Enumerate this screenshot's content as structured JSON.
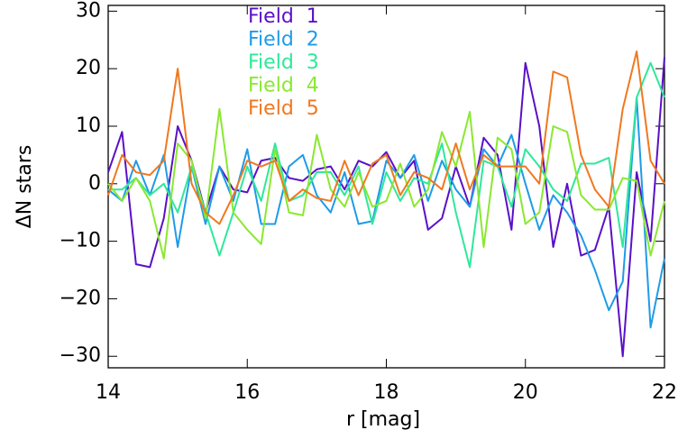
{
  "chart_data": {
    "type": "line",
    "xlabel": "r [mag]",
    "ylabel": "ΔN stars",
    "x": [
      14.0,
      14.2,
      14.4,
      14.6,
      14.8,
      15.0,
      15.2,
      15.4,
      15.6,
      15.8,
      16.0,
      16.2,
      16.4,
      16.6,
      16.8,
      17.0,
      17.2,
      17.4,
      17.6,
      17.8,
      18.0,
      18.2,
      18.4,
      18.6,
      18.8,
      19.0,
      19.2,
      19.4,
      19.6,
      19.8,
      20.0,
      20.2,
      20.4,
      20.6,
      20.8,
      21.0,
      21.2,
      21.4,
      21.6,
      21.8,
      22.0
    ],
    "series": [
      {
        "name": "Field  1",
        "color": "#5a10c8",
        "values": [
          2,
          9,
          -14,
          -14.5,
          -6,
          10,
          4,
          -5,
          3,
          -1,
          -1.5,
          4,
          4.5,
          1,
          0.5,
          2.5,
          3,
          -1,
          4,
          3,
          5.5,
          1,
          4,
          -8,
          -6,
          3,
          -4,
          8,
          5,
          -8,
          21,
          10,
          -11,
          0,
          -12.5,
          -11.5,
          -4,
          -30,
          2,
          -10,
          22
        ]
      },
      {
        "name": "Field  2",
        "color": "#1e9be8",
        "values": [
          -1,
          -3,
          4,
          -2,
          5,
          -11,
          3,
          -7,
          3,
          -3,
          6,
          -7,
          -7,
          3,
          5,
          -2,
          -5,
          2,
          -7,
          -6.5,
          4,
          1,
          5,
          -3,
          4,
          -1,
          -4,
          6,
          3,
          8.5,
          0,
          -8,
          -2,
          -5,
          -9,
          -15,
          -22,
          -17,
          15,
          -25,
          -13
        ]
      },
      {
        "name": "Field  3",
        "color": "#2ee89a",
        "values": [
          -1,
          -1,
          1,
          -2,
          0,
          -5,
          3,
          -5,
          -12.5,
          -5,
          3,
          -3,
          7,
          -3,
          -2,
          2,
          2,
          -2,
          3,
          -7,
          2,
          -3,
          1,
          0,
          7,
          -5,
          -14.5,
          4,
          3,
          -4,
          6,
          3,
          -1,
          -3,
          3.5,
          3.5,
          4.5,
          -11,
          15,
          21,
          15
        ]
      },
      {
        "name": "Field  4",
        "color": "#8ae830",
        "values": [
          0,
          -3,
          1,
          -3,
          -13,
          7,
          4,
          -6,
          13,
          -5,
          -8,
          -10.5,
          6,
          -5,
          -5.5,
          8.5,
          -1,
          -4,
          2,
          -4,
          -3,
          3.5,
          -4,
          -1,
          9,
          3,
          12.5,
          -11,
          8,
          6,
          -7,
          -5,
          10,
          9,
          -2,
          -4.5,
          -4.5,
          1,
          0.5,
          -12.5,
          -3
        ]
      },
      {
        "name": "Field  5",
        "color": "#f07820",
        "values": [
          -2,
          5,
          2,
          1.5,
          4,
          20,
          0,
          -5,
          -7,
          -2,
          4,
          3,
          4,
          -3,
          -1,
          -2.5,
          -3,
          4,
          -2,
          3.5,
          5,
          -2,
          2,
          1,
          -1,
          7,
          -1,
          5,
          3,
          3,
          3,
          0,
          19.5,
          18.5,
          5,
          -1,
          -4,
          13,
          23,
          4,
          0
        ]
      }
    ],
    "xlim": [
      14,
      22
    ],
    "xticks": [
      14,
      16,
      18,
      20,
      22
    ],
    "ylim": [
      -32,
      31
    ],
    "yticks": [
      {
        "value": -30,
        "label": "−30"
      },
      {
        "value": -20,
        "label": "−20"
      },
      {
        "value": -10,
        "label": "−10"
      },
      0,
      10,
      20,
      30
    ]
  }
}
